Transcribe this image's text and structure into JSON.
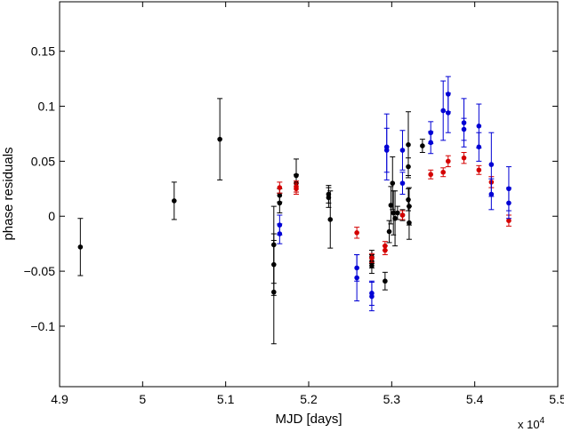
{
  "chart_data": {
    "type": "scatter",
    "title": "",
    "xlabel": "MJD [days]",
    "ylabel": "phase residuals",
    "x_multiplier_label": "x 10",
    "x_multiplier_exponent": "4",
    "xlim": [
      4.9,
      5.5
    ],
    "ylim": [
      -0.155,
      0.195
    ],
    "xticks": [
      "4.9",
      "5",
      "5.1",
      "5.2",
      "5.3",
      "5.4",
      "5.5"
    ],
    "xtick_values": [
      4.9,
      5.0,
      5.1,
      5.2,
      5.3,
      5.4,
      5.5
    ],
    "yticks": [
      "−0.1",
      "−0.05",
      "0",
      "0.05",
      "0.1",
      "0.15"
    ],
    "ytick_values": [
      -0.1,
      -0.05,
      0,
      0.05,
      0.1,
      0.15
    ],
    "grid": false,
    "legend": "none",
    "series": [
      {
        "color": "#000000",
        "points": [
          {
            "x": 4.925,
            "y": -0.028,
            "err": 0.026
          },
          {
            "x": 5.038,
            "y": 0.014,
            "err": 0.017
          },
          {
            "x": 5.093,
            "y": 0.07,
            "err": 0.037
          },
          {
            "x": 5.158,
            "y": -0.026,
            "err": 0.035
          },
          {
            "x": 5.158,
            "y": -0.044,
            "err": 0.028
          },
          {
            "x": 5.158,
            "y": -0.069,
            "err": 0.047
          },
          {
            "x": 5.165,
            "y": 0.012,
            "err": 0.009
          },
          {
            "x": 5.165,
            "y": 0.019,
            "err": 0.006
          },
          {
            "x": 5.185,
            "y": 0.037,
            "err": 0.015
          },
          {
            "x": 5.185,
            "y": 0.03,
            "err": 0.008
          },
          {
            "x": 5.224,
            "y": 0.02,
            "err": 0.008
          },
          {
            "x": 5.224,
            "y": 0.017,
            "err": 0.009
          },
          {
            "x": 5.226,
            "y": -0.003,
            "err": 0.026
          },
          {
            "x": 5.276,
            "y": -0.037,
            "err": 0.006
          },
          {
            "x": 5.276,
            "y": -0.041,
            "err": 0.006
          },
          {
            "x": 5.276,
            "y": -0.045,
            "err": 0.007
          },
          {
            "x": 5.292,
            "y": -0.059,
            "err": 0.008
          },
          {
            "x": 5.297,
            "y": -0.014,
            "err": 0.01
          },
          {
            "x": 5.299,
            "y": 0.01,
            "err": 0.017
          },
          {
            "x": 5.301,
            "y": 0.03,
            "err": 0.024
          },
          {
            "x": 5.302,
            "y": 0.003,
            "err": 0.02
          },
          {
            "x": 5.304,
            "y": -0.002,
            "err": 0.025
          },
          {
            "x": 5.307,
            "y": 0.003,
            "err": 0.006
          },
          {
            "x": 5.313,
            "y": 0.001,
            "err": 0.005
          },
          {
            "x": 5.32,
            "y": 0.065,
            "err": 0.03
          },
          {
            "x": 5.32,
            "y": 0.015,
            "err": 0.01
          },
          {
            "x": 5.321,
            "y": 0.009,
            "err": 0.017
          },
          {
            "x": 5.321,
            "y": -0.006,
            "err": 0.015
          },
          {
            "x": 5.337,
            "y": 0.064,
            "err": 0.006
          },
          {
            "x": 5.32,
            "y": 0.045,
            "err": 0.008
          }
        ]
      },
      {
        "color": "#d40000",
        "points": [
          {
            "x": 5.165,
            "y": 0.026,
            "err": 0.005
          },
          {
            "x": 5.185,
            "y": 0.027,
            "err": 0.005
          },
          {
            "x": 5.185,
            "y": 0.025,
            "err": 0.005
          },
          {
            "x": 5.258,
            "y": -0.015,
            "err": 0.005
          },
          {
            "x": 5.276,
            "y": -0.038,
            "err": 0.004
          },
          {
            "x": 5.292,
            "y": -0.027,
            "err": 0.004
          },
          {
            "x": 5.292,
            "y": -0.031,
            "err": 0.004
          },
          {
            "x": 5.313,
            "y": 0.001,
            "err": 0.004
          },
          {
            "x": 5.347,
            "y": 0.038,
            "err": 0.004
          },
          {
            "x": 5.362,
            "y": 0.04,
            "err": 0.004
          },
          {
            "x": 5.368,
            "y": 0.05,
            "err": 0.005
          },
          {
            "x": 5.387,
            "y": 0.053,
            "err": 0.005
          },
          {
            "x": 5.405,
            "y": 0.042,
            "err": 0.004
          },
          {
            "x": 5.42,
            "y": 0.031,
            "err": 0.005
          },
          {
            "x": 5.441,
            "y": -0.004,
            "err": 0.005
          }
        ]
      },
      {
        "color": "#0000d4",
        "points": [
          {
            "x": 5.165,
            "y": -0.016,
            "err": 0.009
          },
          {
            "x": 5.165,
            "y": -0.008,
            "err": 0.009
          },
          {
            "x": 5.258,
            "y": -0.047,
            "err": 0.012
          },
          {
            "x": 5.258,
            "y": -0.056,
            "err": 0.021
          },
          {
            "x": 5.276,
            "y": -0.07,
            "err": 0.011
          },
          {
            "x": 5.276,
            "y": -0.073,
            "err": 0.013
          },
          {
            "x": 5.294,
            "y": 0.063,
            "err": 0.03
          },
          {
            "x": 5.294,
            "y": 0.06,
            "err": 0.02
          },
          {
            "x": 5.313,
            "y": 0.06,
            "err": 0.018
          },
          {
            "x": 5.313,
            "y": 0.03,
            "err": 0.01
          },
          {
            "x": 5.347,
            "y": 0.067,
            "err": 0.01
          },
          {
            "x": 5.347,
            "y": 0.076,
            "err": 0.01
          },
          {
            "x": 5.362,
            "y": 0.096,
            "err": 0.027
          },
          {
            "x": 5.368,
            "y": 0.111,
            "err": 0.016
          },
          {
            "x": 5.368,
            "y": 0.094,
            "err": 0.018
          },
          {
            "x": 5.387,
            "y": 0.085,
            "err": 0.022
          },
          {
            "x": 5.387,
            "y": 0.079,
            "err": 0.01
          },
          {
            "x": 5.405,
            "y": 0.082,
            "err": 0.02
          },
          {
            "x": 5.405,
            "y": 0.063,
            "err": 0.013
          },
          {
            "x": 5.42,
            "y": 0.047,
            "err": 0.029
          },
          {
            "x": 5.42,
            "y": 0.02,
            "err": 0.014
          },
          {
            "x": 5.441,
            "y": 0.025,
            "err": 0.02
          },
          {
            "x": 5.441,
            "y": 0.012,
            "err": 0.014
          }
        ]
      }
    ]
  }
}
